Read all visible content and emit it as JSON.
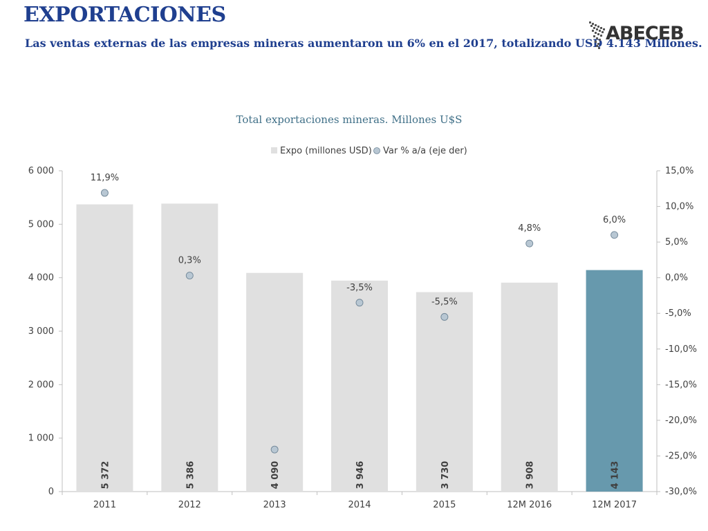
{
  "page": {
    "title": "EXPORTACIONES",
    "subtitle": "Las ventas externas de las empresas mineras aumentaron un 6% en el 2017, totalizando USD 4.143  Millones.",
    "logo_text": "ABECEB"
  },
  "colors": {
    "title": "#1f3f8f",
    "bar": "#e0e0e0",
    "bar_highlight": "#6799ad",
    "marker": "#b8c7d3",
    "marker_stroke": "#6f8596",
    "axis": "#bfbfbf"
  },
  "chart_data": {
    "type": "bar",
    "title": "Total exportaciones mineras. Millones U$S",
    "legend": [
      "Expo (millones USD)",
      "Var % a/a (eje der)"
    ],
    "legend_position": "top",
    "categories": [
      "2011",
      "2012",
      "2013",
      "2014",
      "2015",
      "12M 2016",
      "12M 2017"
    ],
    "series": [
      {
        "name": "Expo (millones USD)",
        "type": "bar",
        "axis": "left",
        "values": [
          5372,
          5386,
          4090,
          3946,
          3730,
          3908,
          4143
        ],
        "labels": [
          "5 372",
          "5 386",
          "4 090",
          "3 946",
          "3 730",
          "3 908",
          "4 143"
        ],
        "highlight_index": 6
      },
      {
        "name": "Var % a/a (eje der)",
        "type": "scatter",
        "axis": "right",
        "values": [
          11.9,
          0.3,
          -24.1,
          -3.5,
          -5.5,
          4.8,
          6.0
        ],
        "labels": [
          "11,9%",
          "0,3%",
          "",
          "-3,5%",
          "-5,5%",
          "4,8%",
          "6,0%"
        ]
      }
    ],
    "y_left": {
      "range": [
        0,
        6000
      ],
      "ticks": [
        0,
        1000,
        2000,
        3000,
        4000,
        5000,
        6000
      ],
      "tick_labels": [
        "0",
        "1 000",
        "2 000",
        "3 000",
        "4 000",
        "5 000",
        "6 000"
      ]
    },
    "y_right": {
      "range": [
        -30,
        15
      ],
      "ticks": [
        -30,
        -25,
        -20,
        -15,
        -10,
        -5,
        0,
        5,
        10,
        15
      ],
      "tick_labels": [
        "-30,0%",
        "-25,0%",
        "-20,0%",
        "-15,0%",
        "-10,0%",
        "-5,0%",
        "0,0%",
        "5,0%",
        "10,0%",
        "15,0%"
      ]
    },
    "grid": false
  }
}
